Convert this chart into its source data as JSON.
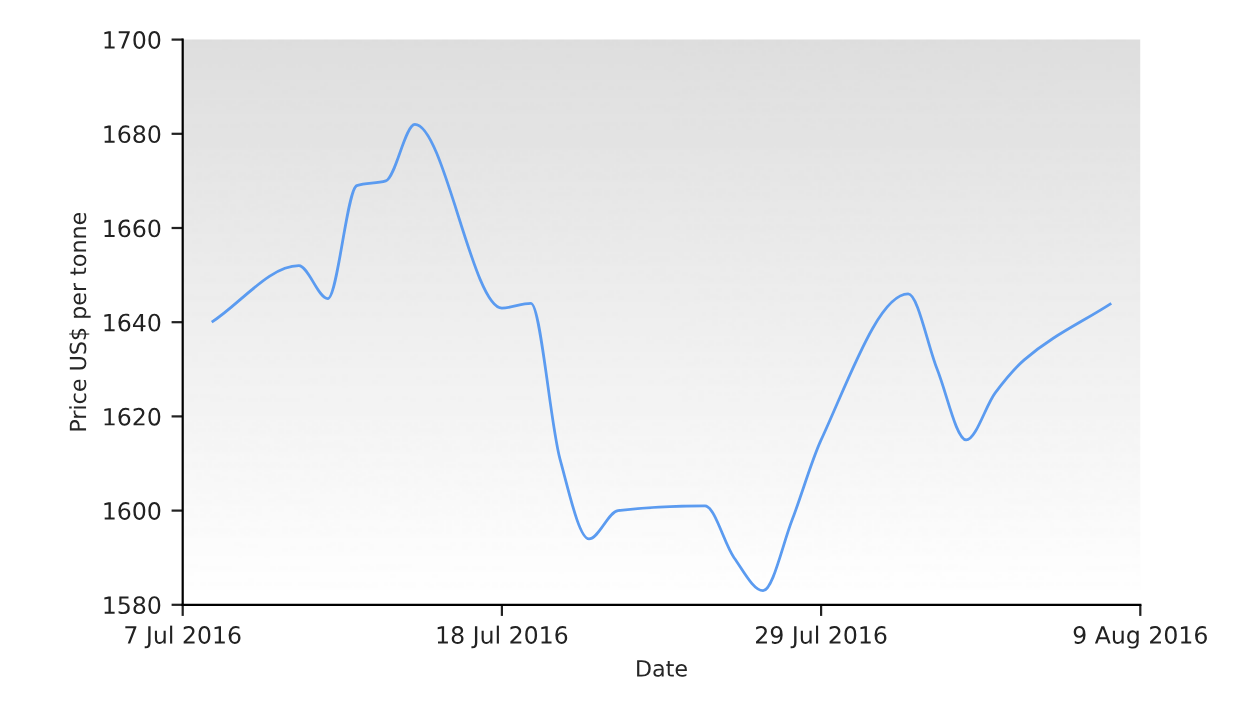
{
  "chart_data": {
    "type": "line",
    "xlabel": "Date",
    "ylabel": "Price US$ per tonne",
    "x": [
      "2016-07-08",
      "2016-07-11",
      "2016-07-12",
      "2016-07-13",
      "2016-07-14",
      "2016-07-15",
      "2016-07-18",
      "2016-07-19",
      "2016-07-20",
      "2016-07-21",
      "2016-07-22",
      "2016-07-25",
      "2016-07-26",
      "2016-07-27",
      "2016-07-28",
      "2016-07-29",
      "2016-08-01",
      "2016-08-02",
      "2016-08-03",
      "2016-08-04",
      "2016-08-05",
      "2016-08-08"
    ],
    "series": [
      {
        "color": "#5b9bf0",
        "values": [
          1640,
          1652,
          1645,
          1669,
          1670,
          1682,
          1643,
          1644,
          1611,
          1594,
          1600,
          1601,
          1590,
          1583,
          1598,
          1615,
          1646,
          1630,
          1615,
          1625,
          1632,
          1644
        ]
      }
    ],
    "xlim": [
      "2016-07-07",
      "2016-08-09"
    ],
    "xticks": [
      {
        "value": "2016-07-07",
        "label": "7 Jul 2016"
      },
      {
        "value": "2016-07-18",
        "label": "18 Jul 2016"
      },
      {
        "value": "2016-07-29",
        "label": "29 Jul 2016"
      },
      {
        "value": "2016-08-09",
        "label": "9 Aug 2016"
      }
    ],
    "ylim": [
      1580,
      1700
    ],
    "yticks": [
      1580,
      1600,
      1620,
      1640,
      1660,
      1680,
      1700
    ],
    "grid": false,
    "legend": false,
    "marker": "none",
    "line_style": "solid"
  }
}
